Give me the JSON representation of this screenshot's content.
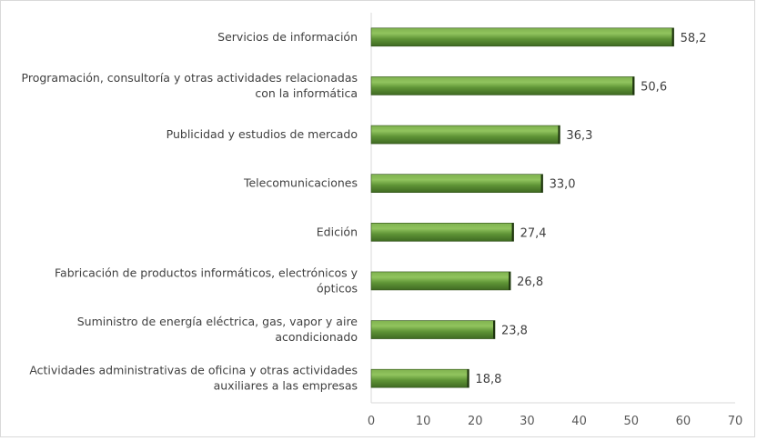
{
  "chart_data": {
    "type": "bar",
    "orientation": "horizontal",
    "categories": [
      [
        "Servicios de información"
      ],
      [
        "Programación, consultoría y otras actividades relacionadas",
        "con la informática"
      ],
      [
        "Publicidad y estudios de mercado"
      ],
      [
        "Telecomunicaciones"
      ],
      [
        "Edición"
      ],
      [
        "Fabricación de productos informáticos, electrónicos y",
        "ópticos"
      ],
      [
        "Suministro de energía eléctrica, gas, vapor y aire",
        "acondicionado"
      ],
      [
        "Actividades administrativas de oficina y otras actividades",
        "auxiliares a las empresas"
      ]
    ],
    "values": [
      58.2,
      50.6,
      36.3,
      33.0,
      27.4,
      26.8,
      23.8,
      18.8
    ],
    "value_labels": [
      "58,2",
      "50,6",
      "36,3",
      "33,0",
      "27,4",
      "26,8",
      "23,8",
      "18,8"
    ],
    "xlim": [
      0,
      70
    ],
    "xticks": [
      "0",
      "10",
      "20",
      "30",
      "40",
      "50",
      "60",
      "70"
    ],
    "grid": false,
    "legend": "none",
    "bar_color": "#5a8a32"
  }
}
